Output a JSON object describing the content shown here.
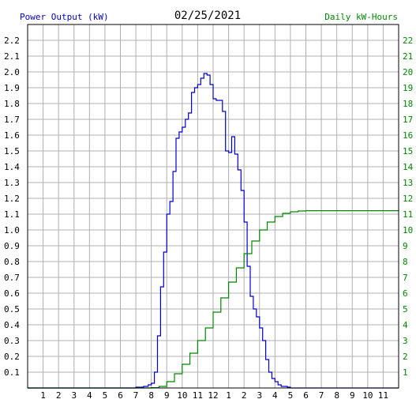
{
  "chart_data": {
    "type": "line",
    "title": "02/25/2021",
    "left_axis_label": "Power Output (kW)",
    "right_axis_label": "Daily kW-Hours",
    "x_ticks": [
      "1",
      "2",
      "3",
      "4",
      "5",
      "6",
      "7",
      "8",
      "9",
      "10",
      "11",
      "12",
      "1",
      "2",
      "3",
      "4",
      "5",
      "6",
      "7",
      "8",
      "9",
      "10",
      "11"
    ],
    "y_left_ticks": [
      "0.1",
      "0.2",
      "0.3",
      "0.4",
      "0.5",
      "0.6",
      "0.7",
      "0.8",
      "0.9",
      "1.0",
      "1.1",
      "1.2",
      "1.3",
      "1.4",
      "1.5",
      "1.6",
      "1.7",
      "1.8",
      "1.9",
      "2.0",
      "2.1",
      "2.2"
    ],
    "y_right_ticks": [
      "1",
      "2",
      "3",
      "4",
      "5",
      "6",
      "7",
      "8",
      "9",
      "10",
      "11",
      "12",
      "13",
      "14",
      "15",
      "16",
      "17",
      "18",
      "19",
      "20",
      "21",
      "22"
    ],
    "xlim": [
      0,
      24
    ],
    "ylim_left": [
      0,
      2.3
    ],
    "ylim_right": [
      0,
      23
    ],
    "grid": true,
    "colors": {
      "power": "#0000cc",
      "energy": "#008800",
      "left_axis": "#0000cc",
      "right_axis": "#008800",
      "grid": "#b0b0b0",
      "axis_text": "#000000"
    },
    "series": [
      {
        "key": "power",
        "x": [
          0,
          6.5,
          7.0,
          7.5,
          7.8,
          8.0,
          8.2,
          8.4,
          8.6,
          8.8,
          9.0,
          9.2,
          9.4,
          9.6,
          9.8,
          10.0,
          10.2,
          10.4,
          10.6,
          10.8,
          11.0,
          11.2,
          11.4,
          11.6,
          11.8,
          12.0,
          12.2,
          12.4,
          12.6,
          12.8,
          13.0,
          13.2,
          13.4,
          13.6,
          13.8,
          14.0,
          14.2,
          14.4,
          14.6,
          14.8,
          15.0,
          15.2,
          15.4,
          15.6,
          15.8,
          16.0,
          16.2,
          16.4,
          16.6,
          16.8,
          17.0,
          17.2,
          17.4,
          17.6,
          17.8,
          18.0,
          18.3,
          18.6,
          19.0,
          24
        ],
        "y": [
          0,
          0,
          0.005,
          0.01,
          0.02,
          0.03,
          0.1,
          0.33,
          0.64,
          0.86,
          1.1,
          1.18,
          1.37,
          1.58,
          1.62,
          1.65,
          1.7,
          1.74,
          1.87,
          1.9,
          1.92,
          1.96,
          1.99,
          1.98,
          1.92,
          1.83,
          1.82,
          1.82,
          1.75,
          1.5,
          1.49,
          1.59,
          1.48,
          1.38,
          1.25,
          1.05,
          0.77,
          0.58,
          0.5,
          0.45,
          0.38,
          0.3,
          0.18,
          0.1,
          0.06,
          0.04,
          0.02,
          0.01,
          0.01,
          0.005,
          0,
          0,
          0,
          0,
          0,
          0,
          0,
          0,
          0,
          0
        ]
      },
      {
        "key": "energy",
        "x": [
          0,
          7.0,
          8.0,
          8.5,
          9.0,
          9.5,
          10.0,
          10.5,
          11.0,
          11.5,
          12.0,
          12.5,
          13.0,
          13.5,
          14.0,
          14.5,
          15.0,
          15.5,
          16.0,
          16.5,
          17.0,
          17.5,
          18.0,
          18.5,
          19.0,
          24
        ],
        "y": [
          0,
          0,
          0.02,
          0.1,
          0.4,
          0.9,
          1.5,
          2.2,
          3.0,
          3.8,
          4.8,
          5.7,
          6.7,
          7.6,
          8.5,
          9.3,
          10.0,
          10.5,
          10.85,
          11.05,
          11.15,
          11.2,
          11.22,
          11.22,
          11.22,
          11.22
        ]
      }
    ]
  }
}
